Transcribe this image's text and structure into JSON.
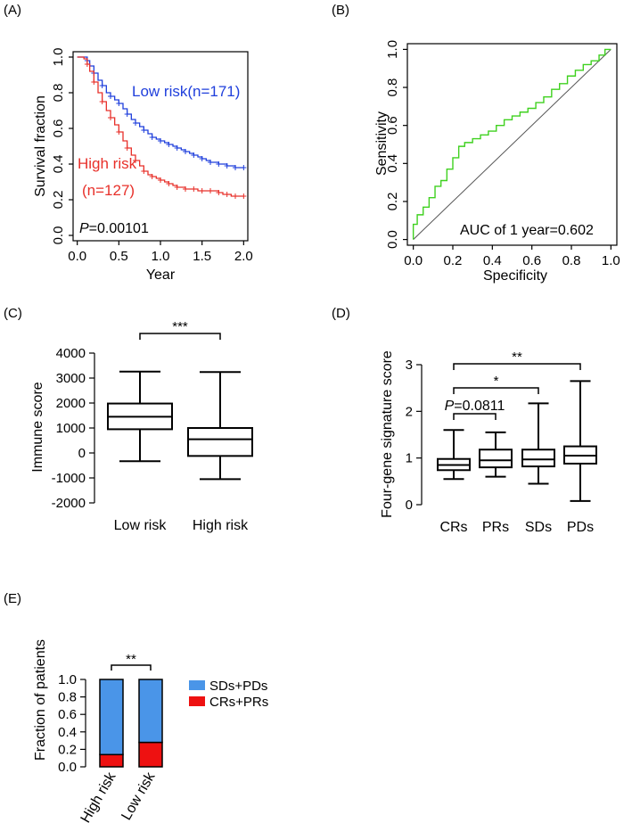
{
  "chart_data": [
    {
      "panel": "(A)",
      "type": "line",
      "subtype": "kaplan-meier",
      "xlabel": "Year",
      "ylabel": "Survival fraction",
      "xlim": [
        -0.05,
        2.05
      ],
      "ylim": [
        -0.03,
        1.03
      ],
      "xticks": [
        "0.0",
        "0.5",
        "1.0",
        "1.5",
        "2.0"
      ],
      "yticks": [
        "0.0",
        "0.2",
        "0.4",
        "0.6",
        "0.8",
        "1.0"
      ],
      "annotation_italic": "P",
      "annotation_rest": "=0.00101",
      "series": [
        {
          "name": "Low risk",
          "label": "Low risk(n=171)",
          "color": "#1f3fdc",
          "x": [
            0,
            0.08,
            0.12,
            0.15,
            0.2,
            0.25,
            0.3,
            0.35,
            0.4,
            0.45,
            0.5,
            0.55,
            0.6,
            0.65,
            0.7,
            0.75,
            0.8,
            0.85,
            0.9,
            0.95,
            1.0,
            1.05,
            1.1,
            1.15,
            1.2,
            1.25,
            1.3,
            1.35,
            1.4,
            1.45,
            1.5,
            1.55,
            1.6,
            1.65,
            1.7,
            1.75,
            1.8,
            1.85,
            1.9,
            1.95,
            2.0
          ],
          "y": [
            1.0,
            1.0,
            0.98,
            0.95,
            0.91,
            0.87,
            0.84,
            0.8,
            0.78,
            0.76,
            0.74,
            0.71,
            0.68,
            0.65,
            0.63,
            0.61,
            0.59,
            0.57,
            0.55,
            0.54,
            0.53,
            0.52,
            0.51,
            0.5,
            0.49,
            0.48,
            0.47,
            0.46,
            0.45,
            0.44,
            0.43,
            0.42,
            0.41,
            0.41,
            0.4,
            0.4,
            0.39,
            0.39,
            0.38,
            0.38,
            0.38
          ]
        },
        {
          "name": "High risk",
          "label1": "High risk",
          "label2": "(n=127)",
          "color": "#e8302a",
          "x": [
            0,
            0.08,
            0.12,
            0.15,
            0.2,
            0.25,
            0.3,
            0.35,
            0.4,
            0.45,
            0.5,
            0.55,
            0.6,
            0.65,
            0.7,
            0.75,
            0.8,
            0.85,
            0.9,
            0.95,
            1.0,
            1.05,
            1.1,
            1.15,
            1.2,
            1.25,
            1.3,
            1.35,
            1.4,
            1.45,
            1.5,
            1.55,
            1.6,
            1.65,
            1.7,
            1.75,
            1.8,
            1.85,
            1.9,
            1.95,
            2.0
          ],
          "y": [
            1.0,
            0.99,
            0.96,
            0.92,
            0.86,
            0.8,
            0.75,
            0.7,
            0.66,
            0.62,
            0.58,
            0.53,
            0.49,
            0.45,
            0.42,
            0.39,
            0.36,
            0.34,
            0.33,
            0.32,
            0.31,
            0.3,
            0.29,
            0.28,
            0.27,
            0.27,
            0.26,
            0.26,
            0.26,
            0.25,
            0.25,
            0.25,
            0.25,
            0.25,
            0.24,
            0.23,
            0.23,
            0.22,
            0.22,
            0.22,
            0.22
          ]
        }
      ]
    },
    {
      "panel": "(B)",
      "type": "line",
      "subtype": "roc",
      "xlabel": "Specificity",
      "ylabel": "Sensitivity",
      "xlim": [
        -0.03,
        1.03
      ],
      "ylim": [
        -0.03,
        1.03
      ],
      "xticks": [
        "0.0",
        "0.2",
        "0.4",
        "0.6",
        "0.8",
        "1.0"
      ],
      "yticks": [
        "0.0",
        "0.2",
        "0.4",
        "0.6",
        "0.8",
        "1.0"
      ],
      "annotation": "AUC of 1 year=0.602",
      "series": [
        {
          "name": "ROC",
          "color": "#3fd11f",
          "x": [
            0,
            0,
            0.02,
            0.02,
            0.05,
            0.05,
            0.08,
            0.08,
            0.11,
            0.11,
            0.14,
            0.14,
            0.17,
            0.17,
            0.2,
            0.2,
            0.23,
            0.23,
            0.26,
            0.26,
            0.3,
            0.3,
            0.34,
            0.34,
            0.38,
            0.38,
            0.42,
            0.42,
            0.46,
            0.46,
            0.5,
            0.5,
            0.54,
            0.54,
            0.58,
            0.58,
            0.62,
            0.62,
            0.66,
            0.66,
            0.7,
            0.7,
            0.74,
            0.74,
            0.78,
            0.78,
            0.82,
            0.82,
            0.86,
            0.86,
            0.9,
            0.9,
            0.94,
            0.94,
            0.97,
            0.97,
            1.0
          ],
          "y": [
            0,
            0.08,
            0.08,
            0.13,
            0.13,
            0.17,
            0.17,
            0.22,
            0.22,
            0.28,
            0.28,
            0.31,
            0.31,
            0.37,
            0.37,
            0.43,
            0.43,
            0.49,
            0.49,
            0.51,
            0.51,
            0.53,
            0.53,
            0.55,
            0.55,
            0.57,
            0.57,
            0.6,
            0.6,
            0.63,
            0.63,
            0.65,
            0.65,
            0.67,
            0.67,
            0.69,
            0.69,
            0.72,
            0.72,
            0.75,
            0.75,
            0.79,
            0.79,
            0.82,
            0.82,
            0.86,
            0.86,
            0.89,
            0.89,
            0.92,
            0.92,
            0.94,
            0.94,
            0.97,
            0.97,
            1.0,
            1.0
          ]
        }
      ],
      "reference_line": [
        [
          0,
          0
        ],
        [
          1,
          1
        ]
      ]
    },
    {
      "panel": "(C)",
      "type": "box",
      "ylabel": "Immune score",
      "ylim": [
        -2000,
        4000
      ],
      "yticks": [
        "4000",
        "3000",
        "2000",
        "1000",
        "0",
        "-1000",
        "-2000"
      ],
      "categories": [
        "Low risk",
        "High risk"
      ],
      "boxes": [
        {
          "min": -330,
          "q1": 950,
          "median": 1450,
          "q3": 1980,
          "max": 3260
        },
        {
          "min": -1050,
          "q1": -120,
          "median": 550,
          "q3": 1000,
          "max": 3240
        }
      ],
      "significance": [
        {
          "from": 0,
          "to": 1,
          "label": "***"
        }
      ]
    },
    {
      "panel": "(D)",
      "type": "box",
      "ylabel": "Four-gene signature score",
      "ylim": [
        0,
        3
      ],
      "yticks": [
        "0",
        "1",
        "2",
        "3"
      ],
      "categories": [
        "CRs",
        "PRs",
        "SDs",
        "PDs"
      ],
      "boxes": [
        {
          "min": 0.55,
          "q1": 0.74,
          "median": 0.85,
          "q3": 0.98,
          "max": 1.6
        },
        {
          "min": 0.6,
          "q1": 0.8,
          "median": 0.95,
          "q3": 1.18,
          "max": 1.55
        },
        {
          "min": 0.45,
          "q1": 0.82,
          "median": 0.97,
          "q3": 1.18,
          "max": 2.17
        },
        {
          "min": 0.08,
          "q1": 0.88,
          "median": 1.05,
          "q3": 1.25,
          "max": 2.65
        }
      ],
      "significance": [
        {
          "from": 0,
          "to": 3,
          "label": "**"
        },
        {
          "from": 0,
          "to": 2,
          "label": "*"
        },
        {
          "from": 0,
          "to": 1,
          "label_italic": "P",
          "label_rest": "=0.0811"
        }
      ]
    },
    {
      "panel": "(E)",
      "type": "bar",
      "stacked": true,
      "ylabel": "Fraction of patients",
      "ylim": [
        0,
        1.0
      ],
      "yticks": [
        "0.0",
        "0.2",
        "0.4",
        "0.6",
        "0.8",
        "1.0"
      ],
      "categories": [
        "High risk",
        "Low risk"
      ],
      "series": [
        {
          "name": "CRs+PRs",
          "color": "#ee1111",
          "values": [
            0.14,
            0.28
          ]
        },
        {
          "name": "SDs+PDs",
          "color": "#4a95e8",
          "values": [
            0.86,
            0.72
          ]
        }
      ],
      "legend": [
        "SDs+PDs",
        "CRs+PRs"
      ],
      "significance": [
        {
          "from": 0,
          "to": 1,
          "label": "**"
        }
      ]
    }
  ]
}
